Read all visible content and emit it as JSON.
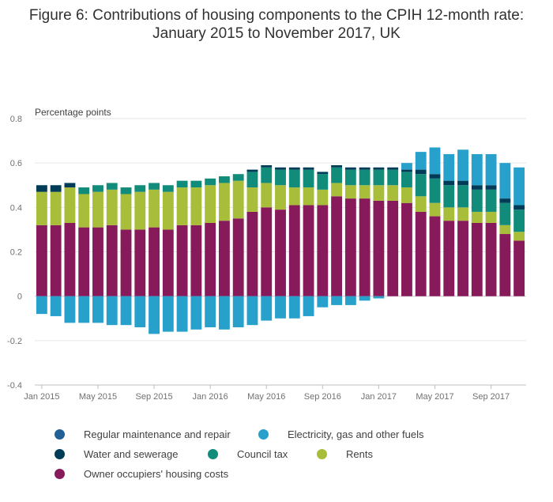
{
  "title_line1": "Figure 6: Contributions of housing components to the CPIH 12-month rate:",
  "title_line2": "January 2015 to November 2017, UK",
  "chart_data": {
    "type": "bar",
    "stacked": true,
    "title": "Figure 6: Contributions of housing components to the CPIH 12-month rate: January 2015 to November 2017, UK",
    "ylabel": "Percentage points",
    "ylim": [
      -0.4,
      0.8
    ],
    "yticks": [
      -0.4,
      -0.2,
      0,
      0.2,
      0.4,
      0.6,
      0.8
    ],
    "ytick_labels": [
      "-0.4",
      "-0.2",
      "0",
      "0.2",
      "0.4",
      "0.6",
      "0.8"
    ],
    "xtick_labels": [
      {
        "index": 0,
        "label": "Jan 2015"
      },
      {
        "index": 4,
        "label": "May 2015"
      },
      {
        "index": 8,
        "label": "Sep 2015"
      },
      {
        "index": 12,
        "label": "Jan 2016"
      },
      {
        "index": 16,
        "label": "May 2016"
      },
      {
        "index": 20,
        "label": "Sep 2016"
      },
      {
        "index": 24,
        "label": "Jan 2017"
      },
      {
        "index": 28,
        "label": "May 2017"
      },
      {
        "index": 32,
        "label": "Sep 2017"
      }
    ],
    "grid": true,
    "legend_position": "bottom",
    "categories": [
      "Jan 2015",
      "Feb 2015",
      "Mar 2015",
      "Apr 2015",
      "May 2015",
      "Jun 2015",
      "Jul 2015",
      "Aug 2015",
      "Sep 2015",
      "Oct 2015",
      "Nov 2015",
      "Dec 2015",
      "Jan 2016",
      "Feb 2016",
      "Mar 2016",
      "Apr 2016",
      "May 2016",
      "Jun 2016",
      "Jul 2016",
      "Aug 2016",
      "Sep 2016",
      "Oct 2016",
      "Nov 2016",
      "Dec 2016",
      "Jan 2017",
      "Feb 2017",
      "Mar 2017",
      "Apr 2017",
      "May 2017",
      "Jun 2017",
      "Jul 2017",
      "Aug 2017",
      "Sep 2017",
      "Oct 2017",
      "Nov 2017"
    ],
    "series": [
      {
        "name": "Owner occupiers' housing costs",
        "color": "#871a5b",
        "values": [
          0.32,
          0.32,
          0.33,
          0.31,
          0.31,
          0.32,
          0.3,
          0.3,
          0.31,
          0.3,
          0.32,
          0.32,
          0.33,
          0.34,
          0.35,
          0.38,
          0.4,
          0.39,
          0.41,
          0.41,
          0.41,
          0.45,
          0.44,
          0.44,
          0.43,
          0.43,
          0.42,
          0.38,
          0.36,
          0.34,
          0.34,
          0.33,
          0.33,
          0.28,
          0.25
        ]
      },
      {
        "name": "Rents",
        "color": "#a8bd3a",
        "values": [
          0.15,
          0.15,
          0.16,
          0.15,
          0.16,
          0.16,
          0.16,
          0.17,
          0.17,
          0.17,
          0.17,
          0.17,
          0.17,
          0.17,
          0.17,
          0.11,
          0.11,
          0.11,
          0.08,
          0.08,
          0.07,
          0.06,
          0.06,
          0.06,
          0.07,
          0.07,
          0.07,
          0.07,
          0.06,
          0.06,
          0.06,
          0.05,
          0.05,
          0.04,
          0.04
        ]
      },
      {
        "name": "Council tax",
        "color": "#118c7b",
        "values": [
          0.0,
          0.0,
          0.0,
          0.03,
          0.03,
          0.03,
          0.03,
          0.03,
          0.03,
          0.03,
          0.03,
          0.03,
          0.03,
          0.03,
          0.03,
          0.07,
          0.07,
          0.07,
          0.08,
          0.08,
          0.07,
          0.07,
          0.07,
          0.07,
          0.07,
          0.07,
          0.07,
          0.1,
          0.11,
          0.1,
          0.1,
          0.1,
          0.1,
          0.1,
          0.1
        ]
      },
      {
        "name": "Water and sewerage",
        "color": "#003c57",
        "values": [
          0.03,
          0.03,
          0.02,
          0.0,
          0.0,
          0.0,
          0.0,
          0.0,
          0.0,
          0.0,
          0.0,
          0.0,
          0.0,
          0.0,
          0.0,
          0.01,
          0.01,
          0.01,
          0.01,
          0.01,
          0.01,
          0.01,
          0.01,
          0.01,
          0.01,
          0.01,
          0.01,
          0.02,
          0.02,
          0.02,
          0.02,
          0.02,
          0.02,
          0.02,
          0.02
        ]
      },
      {
        "name": "Regular maintenance and repair",
        "color": "#206095",
        "values": [
          0.0,
          0.0,
          0.0,
          0.0,
          0.0,
          0.0,
          0.0,
          0.0,
          0.0,
          0.0,
          0.0,
          0.0,
          0.0,
          0.0,
          0.0,
          0.0,
          0.0,
          0.0,
          0.0,
          0.0,
          0.0,
          0.0,
          0.0,
          0.0,
          0.0,
          0.0,
          0.0,
          0.0,
          0.0,
          0.0,
          0.0,
          0.0,
          0.0,
          0.0,
          0.0
        ]
      },
      {
        "name": "Electricity, gas and other fuels",
        "color": "#27a0cc",
        "values": [
          -0.08,
          -0.09,
          -0.12,
          -0.12,
          -0.12,
          -0.13,
          -0.13,
          -0.14,
          -0.17,
          -0.16,
          -0.16,
          -0.15,
          -0.14,
          -0.15,
          -0.14,
          -0.13,
          -0.11,
          -0.1,
          -0.1,
          -0.09,
          -0.05,
          -0.04,
          -0.04,
          -0.02,
          -0.01,
          0.0,
          0.03,
          0.08,
          0.12,
          0.12,
          0.14,
          0.14,
          0.14,
          0.16,
          0.17
        ]
      }
    ]
  },
  "legend": [
    {
      "label": "Regular maintenance and repair",
      "color": "#206095"
    },
    {
      "label": "Electricity, gas and other fuels",
      "color": "#27a0cc"
    },
    {
      "label": "Water and sewerage",
      "color": "#003c57"
    },
    {
      "label": "Council tax",
      "color": "#118c7b"
    },
    {
      "label": "Rents",
      "color": "#a8bd3a"
    },
    {
      "label": "Owner occupiers' housing costs",
      "color": "#871a5b"
    }
  ]
}
